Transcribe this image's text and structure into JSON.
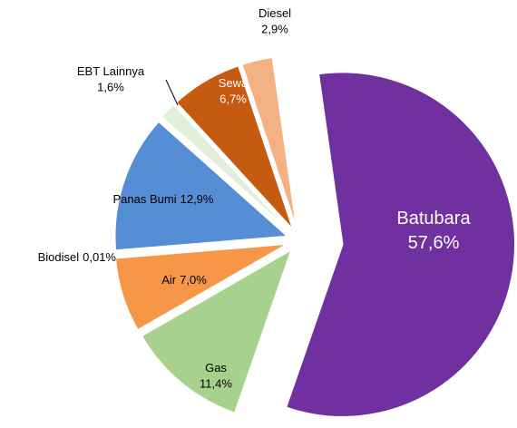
{
  "chart_data": {
    "type": "pie",
    "categories": [
      "Batubara",
      "Gas",
      "Air",
      "Biodisel",
      "Panas Bumi",
      "EBT Lainnya",
      "Sewa",
      "Diesel"
    ],
    "values": [
      57.6,
      11.4,
      7.0,
      0.01,
      12.9,
      1.6,
      6.7,
      2.9
    ],
    "value_labels": [
      "57,6%",
      "11,4%",
      "7,0%",
      "0,01%",
      "12,9%",
      "1,6%",
      "6,7%",
      "2,9%"
    ],
    "colors": [
      "#7030a0",
      "#a9d18e",
      "#f79646",
      "#dce6f2",
      "#558ed5",
      "#e2efda",
      "#c55a11",
      "#f4b183"
    ]
  }
}
